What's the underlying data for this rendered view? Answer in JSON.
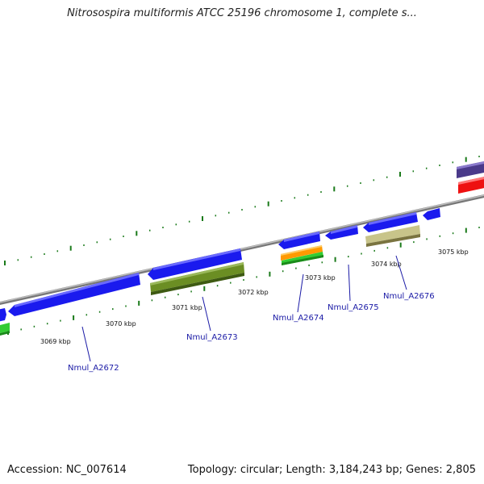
{
  "title": "Nitrosospira multiformis ATCC 25196 chromosome 1, complete s...",
  "footer": {
    "accession": "Accession: NC_007614",
    "topology": "Topology: circular; Length: 3,184,243 bp; Genes: 2,805"
  },
  "colors": {
    "backbone": "#8a8a8a",
    "cds": "#1a1aee",
    "gene_green": "#33cc33",
    "olive": "#6b8e23",
    "khaki": "#c8c48a",
    "orange": "#ff9900",
    "red": "#ee1111",
    "purple": "#4a3a8a",
    "tick": "#1a7a1a"
  },
  "kbp_labels": [
    "3069 kbp",
    "3070 kbp",
    "3071 kbp",
    "3072 kbp",
    "3073 kbp",
    "3074 kbp",
    "3075 kbp"
  ],
  "gene_labels": [
    "Nmul_A2672",
    "Nmul_A2673",
    "Nmul_A2674",
    "Nmul_A2675",
    "Nmul_A2676"
  ]
}
